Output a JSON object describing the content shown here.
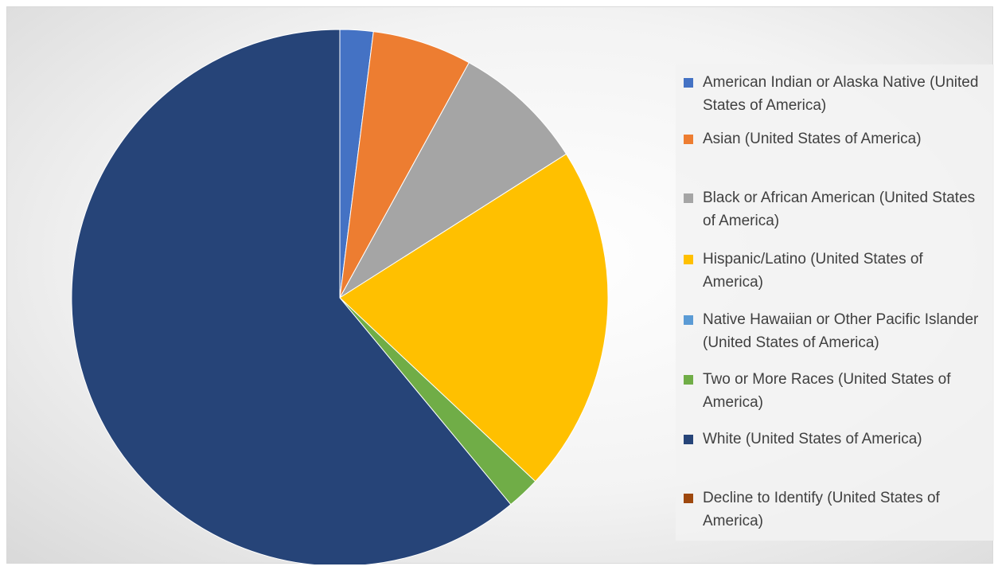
{
  "chart_data": {
    "type": "pie",
    "start_angle_deg": 0,
    "direction": "clockwise",
    "legend_position": "right",
    "slices": [
      {
        "label": "American Indian or Alaska Native (United States of America)",
        "value": 2.0,
        "color": "#4472C4"
      },
      {
        "label": "Asian (United States of America)",
        "value": 6.0,
        "color": "#ED7D31"
      },
      {
        "label": "Black or African American (United States of America)",
        "value": 8.0,
        "color": "#A5A5A5"
      },
      {
        "label": "Hispanic/Latino (United States of America)",
        "value": 21.0,
        "color": "#FFC000"
      },
      {
        "label": "Native Hawaiian or Other Pacific Islander (United States of America)",
        "value": 0.0,
        "color": "#5B9BD5"
      },
      {
        "label": "Two or More Races (United States of America)",
        "value": 2.0,
        "color": "#70AD47"
      },
      {
        "label": "White (United States of America)",
        "value": 61.0,
        "color": "#264478"
      },
      {
        "label": "Decline to Identify (United States of America)",
        "value": 0.0,
        "color": "#9E480E"
      }
    ]
  }
}
